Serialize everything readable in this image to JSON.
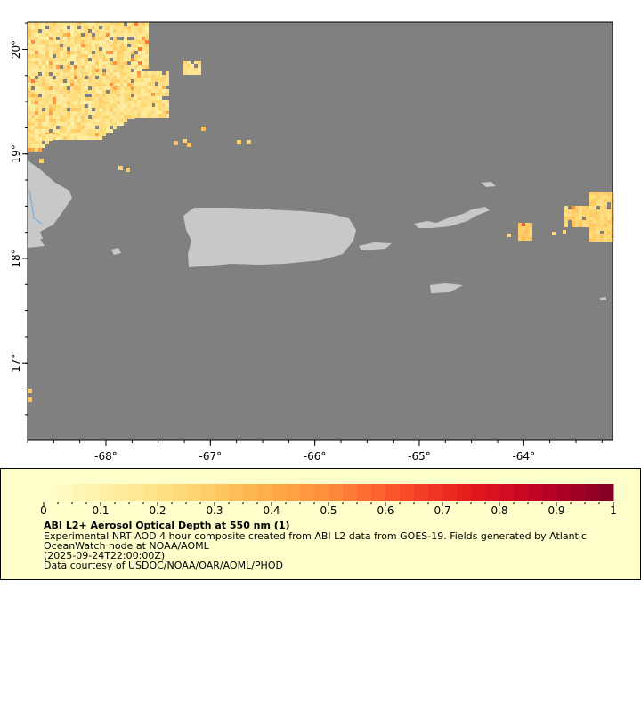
{
  "map": {
    "lon_range": [
      -68.75,
      -63.15
    ],
    "lat_range": [
      16.26,
      20.26
    ],
    "lon_ticks": [
      -68,
      -67,
      -66,
      -65,
      -64
    ],
    "lon_tick_labels": [
      "-68°",
      "-67°",
      "-66°",
      "-65°",
      "-64°"
    ],
    "lat_ticks": [
      20,
      19,
      18,
      17
    ],
    "lat_tick_labels": [
      "20°",
      "19°",
      "18°",
      "17°"
    ],
    "colors": {
      "ocean_nodata": "#808080",
      "land": "#c8c8c8",
      "river": "#6fa8dc",
      "legend_bg": "#ffffcc"
    }
  },
  "legend": {
    "range": [
      0,
      1
    ],
    "tick_labels": [
      "0",
      "0.1",
      "0.2",
      "0.3",
      "0.4",
      "0.5",
      "0.6",
      "0.7",
      "0.8",
      "0.9",
      "1"
    ],
    "title": "ABI L2+ Aerosol Optical Depth at 550 nm (1)",
    "description_line1": "Experimental NRT AOD 4 hour composite created from ABI L2 data from GOES-19. Fields generated by Atlantic",
    "description_line2": "OceanWatch node at NOAA/AOML",
    "time": "(2025-09-24T22:00:00Z)",
    "credit": "Data courtesy of USDOC/NOAA/OAR/AOML/PHOD",
    "palette": [
      "#ffffcc",
      "#ffeda0",
      "#fed976",
      "#feb24c",
      "#fd8d3c",
      "#fc4e2a",
      "#e31a1c",
      "#bd0026",
      "#800026"
    ]
  }
}
